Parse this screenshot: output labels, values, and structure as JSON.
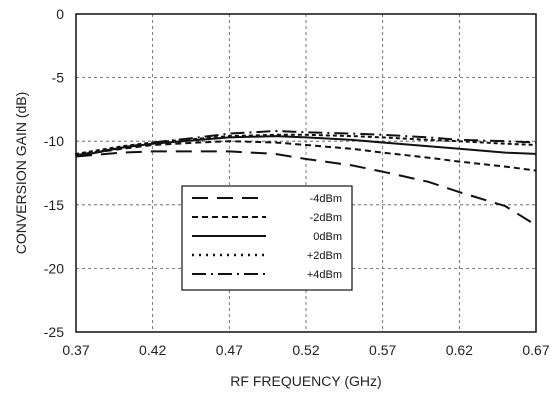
{
  "chart_data": {
    "type": "line",
    "title": "",
    "xlabel": "RF FREQUENCY (GHz)",
    "ylabel": "CONVERSION GAIN (dB)",
    "xlim": [
      0.37,
      0.67
    ],
    "ylim": [
      -25,
      0
    ],
    "xticks": [
      0.37,
      0.42,
      0.47,
      0.52,
      0.57,
      0.62,
      0.67
    ],
    "xtick_labels": [
      "0.37",
      "0.42",
      "0.47",
      "0.52",
      "0.57",
      "0.62",
      "0.67"
    ],
    "yticks": [
      0,
      -5,
      -10,
      -15,
      -20,
      -25
    ],
    "ytick_labels": [
      "0",
      "-5",
      "-10",
      "-15",
      "-20",
      "-25"
    ],
    "grid": true,
    "legend_position": "lower-center",
    "series": [
      {
        "name": "-4dBm",
        "style": "long-dash",
        "x": [
          0.37,
          0.4,
          0.42,
          0.45,
          0.47,
          0.5,
          0.52,
          0.55,
          0.57,
          0.6,
          0.62,
          0.65,
          0.67
        ],
        "y": [
          -11.2,
          -10.9,
          -10.8,
          -10.8,
          -10.8,
          -11.0,
          -11.4,
          -11.9,
          -12.4,
          -13.2,
          -14.0,
          -15.1,
          -16.6
        ]
      },
      {
        "name": "-2dBm",
        "style": "short-dash",
        "x": [
          0.37,
          0.4,
          0.42,
          0.45,
          0.47,
          0.5,
          0.52,
          0.55,
          0.57,
          0.6,
          0.62,
          0.65,
          0.67
        ],
        "y": [
          -11.1,
          -10.6,
          -10.3,
          -10.1,
          -10.0,
          -10.1,
          -10.3,
          -10.6,
          -10.9,
          -11.3,
          -11.6,
          -12.0,
          -12.3
        ]
      },
      {
        "name": "0dBm",
        "style": "solid",
        "x": [
          0.37,
          0.4,
          0.42,
          0.45,
          0.47,
          0.5,
          0.52,
          0.55,
          0.57,
          0.6,
          0.62,
          0.65,
          0.67
        ],
        "y": [
          -11.2,
          -10.5,
          -10.2,
          -9.9,
          -9.7,
          -9.6,
          -9.7,
          -9.9,
          -10.1,
          -10.4,
          -10.6,
          -10.9,
          -11.0
        ]
      },
      {
        "name": "+2dBm",
        "style": "dotted",
        "x": [
          0.37,
          0.4,
          0.42,
          0.45,
          0.47,
          0.5,
          0.52,
          0.55,
          0.57,
          0.6,
          0.62,
          0.65,
          0.67
        ],
        "y": [
          -11.0,
          -10.4,
          -10.1,
          -9.8,
          -9.6,
          -9.5,
          -9.5,
          -9.6,
          -9.7,
          -9.9,
          -10.0,
          -10.2,
          -10.3
        ]
      },
      {
        "name": "+4dBm",
        "style": "dash-dot",
        "x": [
          0.37,
          0.4,
          0.42,
          0.45,
          0.47,
          0.5,
          0.52,
          0.55,
          0.57,
          0.6,
          0.62,
          0.65,
          0.67
        ],
        "y": [
          -11.1,
          -10.5,
          -10.1,
          -9.7,
          -9.4,
          -9.2,
          -9.3,
          -9.4,
          -9.5,
          -9.7,
          -9.9,
          -10.0,
          -10.1
        ]
      }
    ]
  }
}
